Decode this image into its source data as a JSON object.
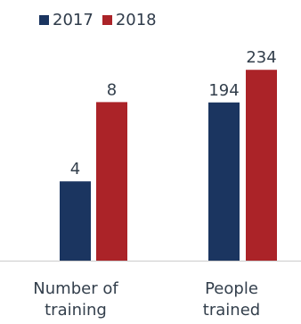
{
  "colors": {
    "series_2017": "#1b3560",
    "series_2018": "#ab2328",
    "text": "#333f4c",
    "axis": "#cccccc"
  },
  "legend": {
    "items": [
      {
        "label": "2017",
        "color": "#1b3560"
      },
      {
        "label": "2018",
        "color": "#ab2328"
      }
    ]
  },
  "chart_data": {
    "type": "bar",
    "title": "",
    "xlabel": "",
    "ylabel": "",
    "categories": [
      {
        "line1": "Number of",
        "line2": "training"
      },
      {
        "line1": "People",
        "line2": "trained"
      }
    ],
    "series": [
      {
        "name": "2017",
        "color": "#1b3560"
      },
      {
        "name": "2018",
        "color": "#ab2328"
      }
    ],
    "panels": [
      {
        "values": [
          4,
          8
        ],
        "ylim": [
          0,
          10
        ]
      },
      {
        "values": [
          194,
          234
        ],
        "ylim": [
          0,
          243
        ]
      }
    ],
    "legend_position": "top-left",
    "grid": false
  }
}
